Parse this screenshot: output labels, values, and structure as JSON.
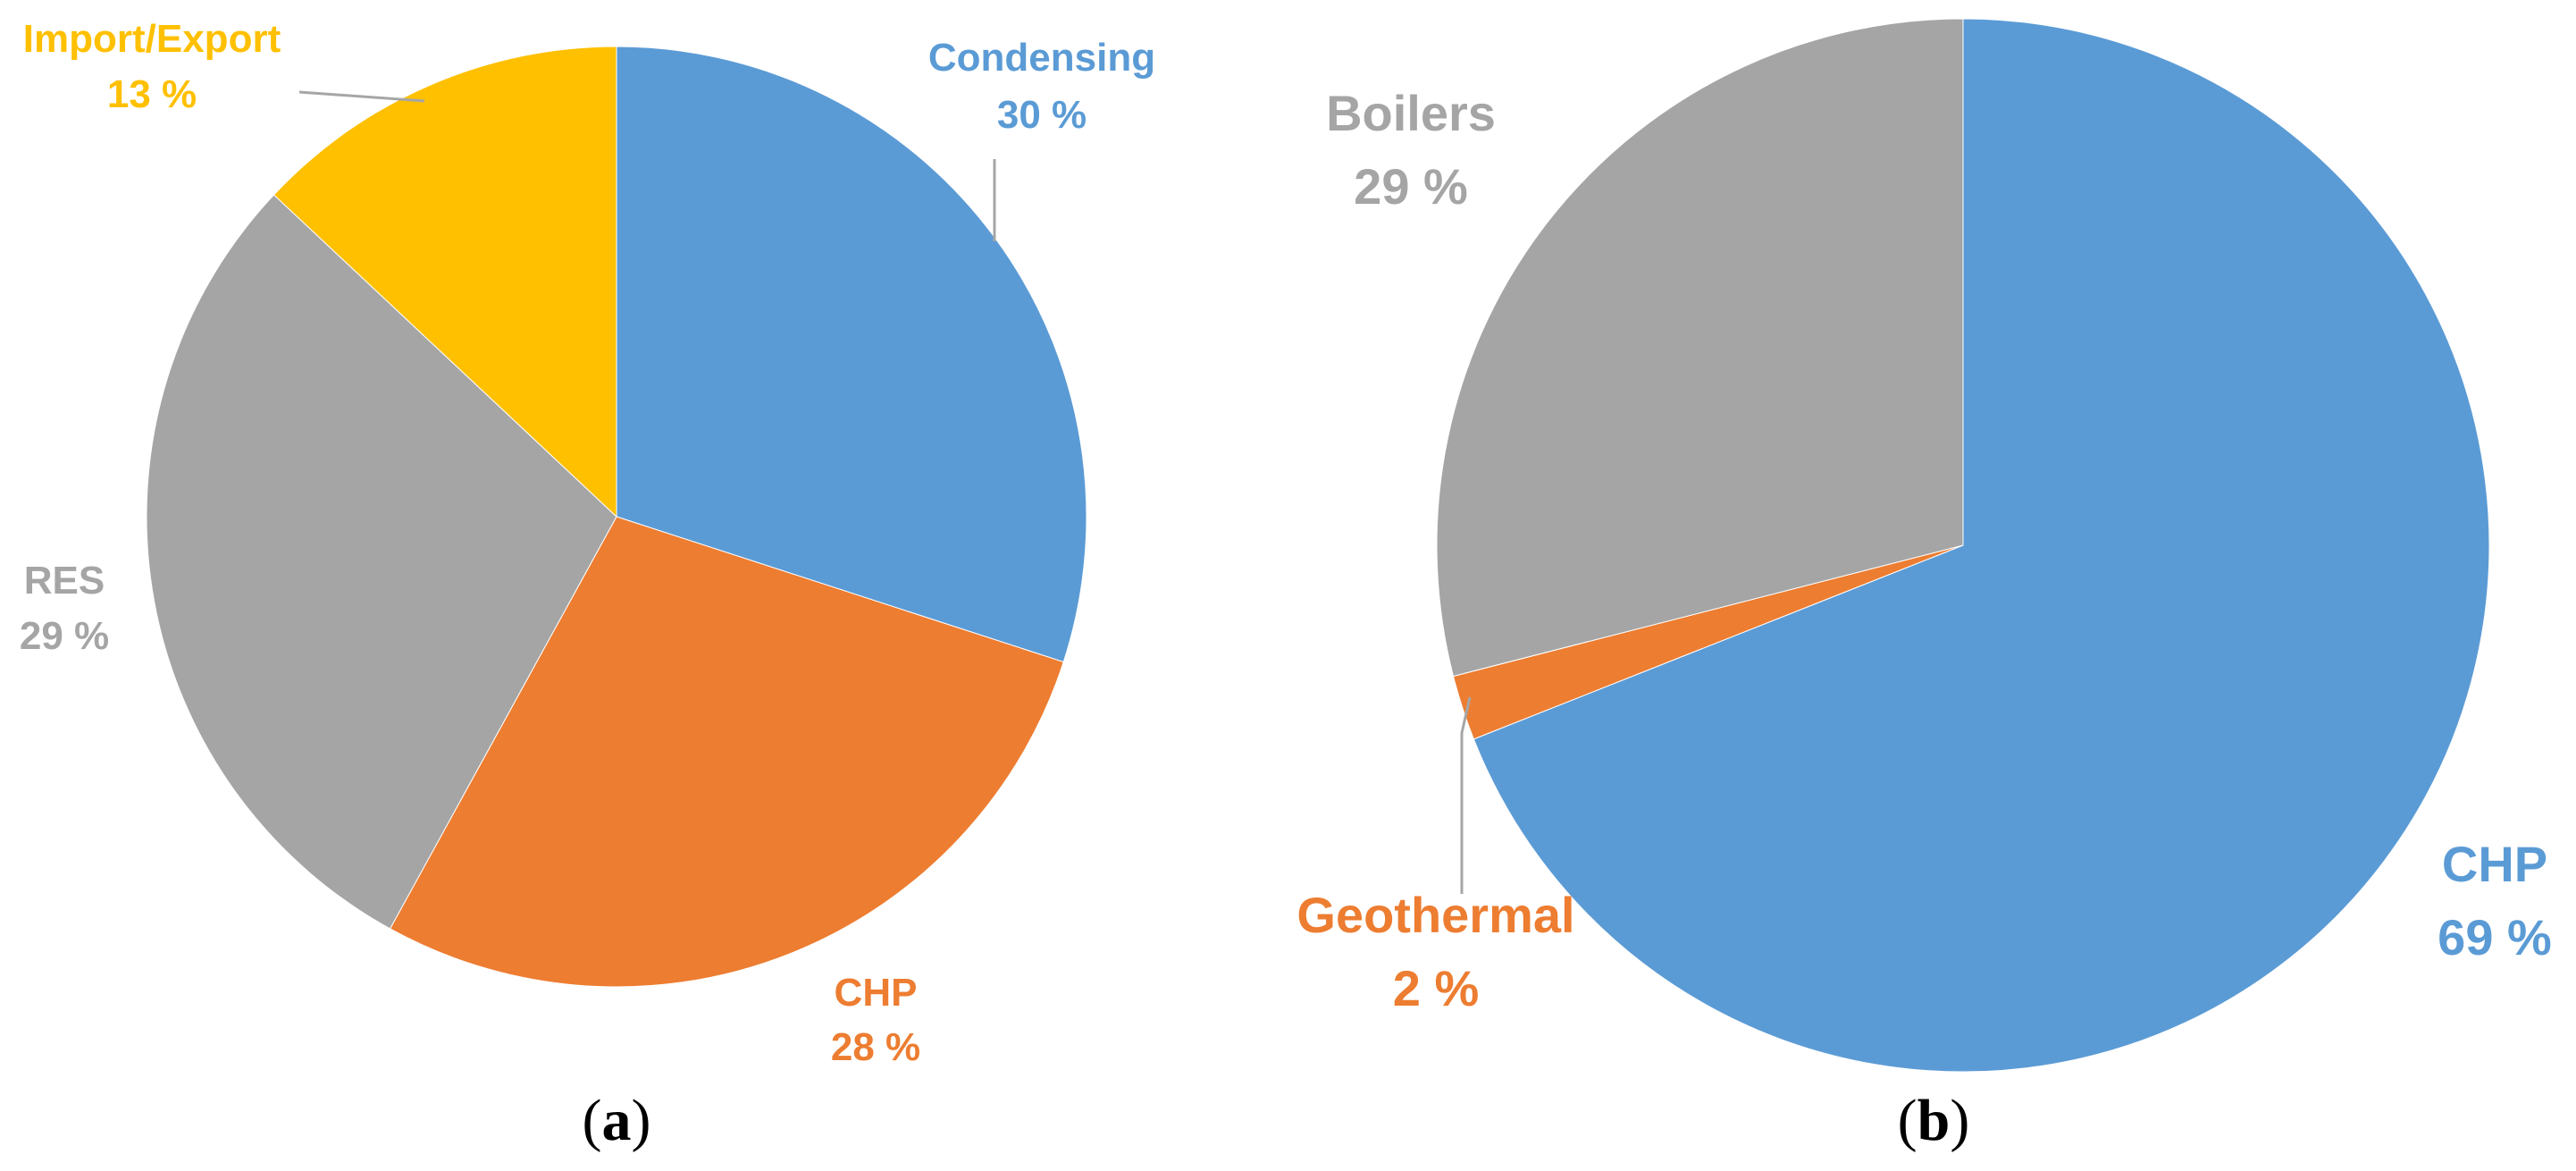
{
  "chart_data": [
    {
      "type": "pie",
      "panel_label": "a",
      "slices": [
        {
          "label": "Condensing",
          "value": 30,
          "value_text": "30 %",
          "color": "#5B9BD5"
        },
        {
          "label": "CHP",
          "value": 28,
          "value_text": "28 %",
          "color": "#ED7D31"
        },
        {
          "label": "RES",
          "value": 29,
          "value_text": "29 %",
          "color": "#A5A5A5"
        },
        {
          "label": "Import/Export",
          "value": 13,
          "value_text": "13 %",
          "color": "#FFC000"
        }
      ],
      "start": "12 o'clock",
      "direction": "clockwise",
      "legend": "none"
    },
    {
      "type": "pie",
      "panel_label": "b",
      "slices": [
        {
          "label": "CHP",
          "value": 69,
          "value_text": "69 %",
          "color": "#5B9BD5"
        },
        {
          "label": "Geothermal",
          "value": 2,
          "value_text": "2 %",
          "color": "#ED7D31"
        },
        {
          "label": "Boilers",
          "value": 29,
          "value_text": "29 %",
          "color": "#A5A5A5"
        }
      ],
      "start": "12 o'clock",
      "direction": "clockwise",
      "legend": "none"
    }
  ]
}
